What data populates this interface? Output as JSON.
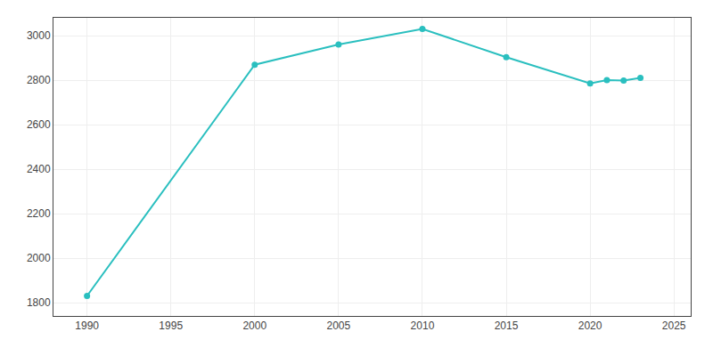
{
  "chart_data": {
    "type": "line",
    "x": [
      1990,
      2000,
      2005,
      2010,
      2015,
      2020,
      2021,
      2022,
      2023
    ],
    "values": [
      1830,
      2869,
      2960,
      3030,
      2903,
      2785,
      2800,
      2798,
      2810
    ],
    "color": "#2abfbf",
    "marker": "circle",
    "xlim": [
      1988,
      2026
    ],
    "ylim": [
      1740,
      3080
    ],
    "xticks": [
      1990,
      1995,
      2000,
      2005,
      2010,
      2015,
      2020,
      2025
    ],
    "yticks": [
      1800,
      2000,
      2200,
      2400,
      2600,
      2800,
      3000
    ],
    "grid": true
  }
}
